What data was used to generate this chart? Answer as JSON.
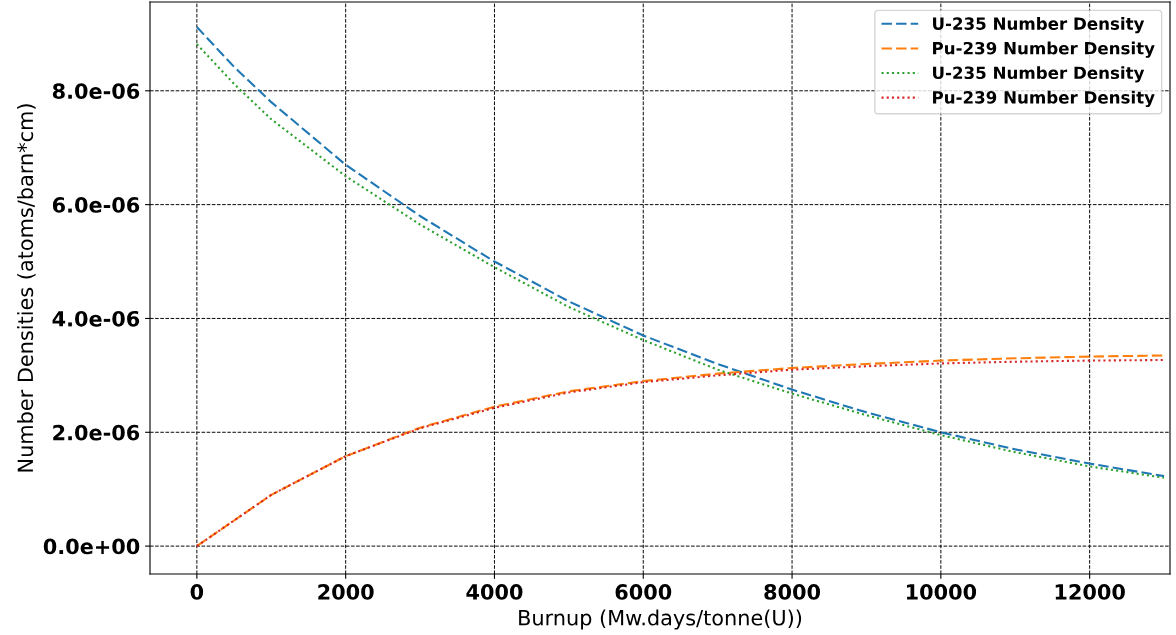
{
  "chart_data": {
    "type": "line",
    "xlabel": "Burnup (Mw.days/tonne(U))",
    "ylabel": "Number Densities (atoms/barn*cm)",
    "x": [
      0,
      500,
      1000,
      2000,
      3000,
      4000,
      5000,
      6000,
      7000,
      8000,
      9000,
      10000,
      11000,
      12000,
      13000
    ],
    "series": [
      {
        "name": "U-235 Number Density",
        "color": "#1f77b4",
        "line_style": "dashed",
        "values": [
          9.12e-06,
          8.42e-06,
          7.8e-06,
          6.7e-06,
          5.8e-06,
          5e-06,
          4.3e-06,
          3.7e-06,
          3.2e-06,
          2.75e-06,
          2.35e-06,
          2e-06,
          1.7e-06,
          1.45e-06,
          1.23e-06
        ]
      },
      {
        "name": "Pu-239 Number Density",
        "color": "#ff7f0e",
        "line_style": "dashed",
        "values": [
          0,
          4.5e-07,
          9e-07,
          1.58e-06,
          2.08e-06,
          2.45e-06,
          2.72e-06,
          2.9e-06,
          3.03e-06,
          3.13e-06,
          3.2e-06,
          3.26e-06,
          3.3e-06,
          3.33e-06,
          3.35e-06
        ]
      },
      {
        "name": "U-235 Number Density",
        "color": "#2ca02c",
        "line_style": "dotted",
        "values": [
          8.82e-06,
          8.12e-06,
          7.5e-06,
          6.5e-06,
          5.65e-06,
          4.9e-06,
          4.2e-06,
          3.62e-06,
          3.1e-06,
          2.68e-06,
          2.3e-06,
          1.95e-06,
          1.65e-06,
          1.4e-06,
          1.2e-06
        ]
      },
      {
        "name": "Pu-239 Number Density",
        "color": "#d62728",
        "line_style": "dotted",
        "values": [
          0,
          4.5e-07,
          9e-07,
          1.58e-06,
          2.07e-06,
          2.43e-06,
          2.7e-06,
          2.88e-06,
          3e-06,
          3.1e-06,
          3.16e-06,
          3.21e-06,
          3.24e-06,
          3.26e-06,
          3.27e-06
        ]
      }
    ],
    "xlim": [
      -630,
      13080
    ],
    "xticks": [
      0,
      2000,
      4000,
      6000,
      8000,
      10000,
      12000
    ],
    "ylim": [
      -4.9e-07,
      9.56e-06
    ],
    "yticks": [
      {
        "value": 0,
        "label": "0.0e+00"
      },
      {
        "value": 2e-06,
        "label": "2.0e-06"
      },
      {
        "value": 4e-06,
        "label": "4.0e-06"
      },
      {
        "value": 6e-06,
        "label": "6.0e-06"
      },
      {
        "value": 8e-06,
        "label": "8.0e-06"
      }
    ],
    "grid": true,
    "legend": "top right"
  }
}
